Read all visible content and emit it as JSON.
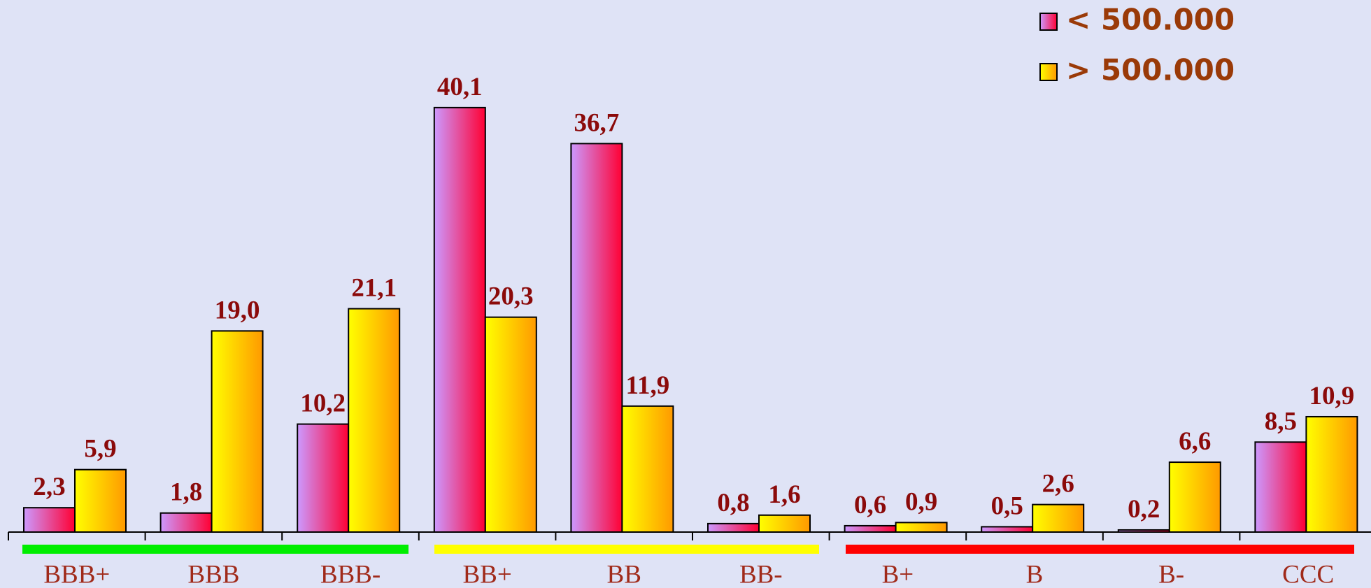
{
  "chart_data": {
    "type": "bar",
    "categories": [
      "BBB+",
      "BBB",
      "BBB-",
      "BB+",
      "BB",
      "BB-",
      "B+",
      "B",
      "B-",
      "CCC"
    ],
    "series": [
      {
        "name": "< 500.000",
        "gradient": [
          "#cc99ff",
          "#ff0033"
        ],
        "values": [
          2.3,
          1.8,
          10.2,
          40.1,
          36.7,
          0.8,
          0.6,
          0.5,
          0.2,
          8.5
        ],
        "value_labels": [
          "2,3",
          "1,8",
          "10,2",
          "40,1",
          "36,7",
          "0,8",
          "0,6",
          "0,5",
          "0,2",
          "8,5"
        ]
      },
      {
        "name": "> 500.000",
        "gradient": [
          "#ffff00",
          "#ff9900"
        ],
        "values": [
          5.9,
          19.0,
          21.1,
          20.3,
          11.9,
          1.6,
          0.9,
          2.6,
          6.6,
          10.9
        ],
        "value_labels": [
          "5,9",
          "19,0",
          "21,1",
          "20,3",
          "11,9",
          "1,6",
          "0,9",
          "2,6",
          "6,6",
          "10,9"
        ]
      }
    ],
    "ylim": [
      0,
      50
    ],
    "legend": "top-right"
  }
}
